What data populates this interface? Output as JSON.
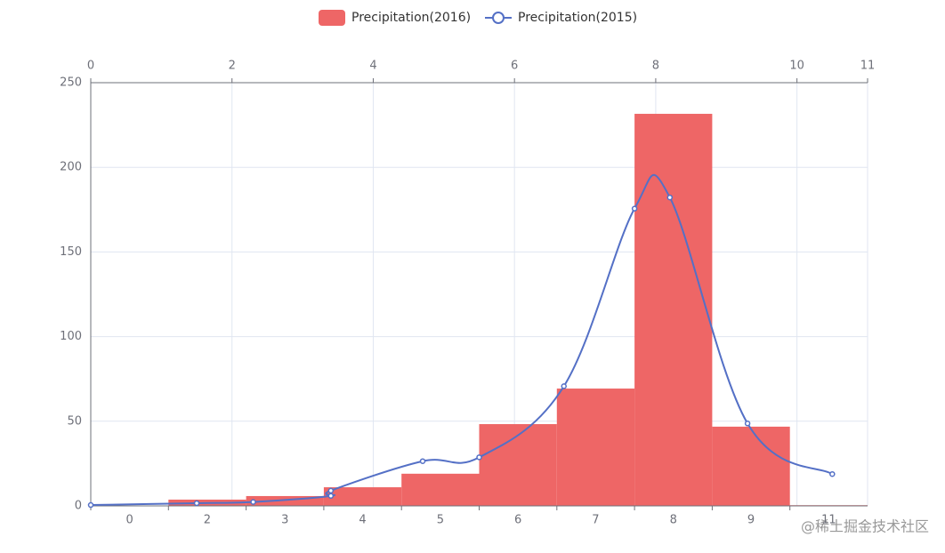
{
  "chart_data": {
    "type": "bar-line",
    "categories": [
      "0",
      "2",
      "3",
      "4",
      "5",
      "6",
      "7",
      "8",
      "9",
      "11"
    ],
    "ylim": [
      0,
      250
    ],
    "yticks": [
      0,
      50,
      100,
      150,
      200,
      250
    ],
    "xlim": [
      0,
      11
    ],
    "xticks": [
      0,
      2,
      4,
      6,
      8,
      10,
      11
    ],
    "grid": true,
    "series": [
      {
        "name": "Precipitation(2016)",
        "color": "#ee6666",
        "values": [
          0,
          3.7,
          5.8,
          11,
          19,
          48.3,
          69.3,
          231.6,
          46.8,
          0.4
        ]
      },
      {
        "name": "Precipitation(2015)",
        "color": "#5470c6",
        "x": [
          0,
          1.5,
          2.3,
          3.4,
          3.4,
          4.7,
          5.5,
          6.7,
          7.7,
          8.2,
          9.3,
          10.5
        ],
        "values": [
          0.5,
          1.6,
          2.3,
          5.9,
          9.0,
          26.4,
          28.7,
          70.7,
          175.6,
          182.2,
          48.7,
          18.8
        ]
      }
    ],
    "watermark": "@稀土掘金技术社区"
  }
}
